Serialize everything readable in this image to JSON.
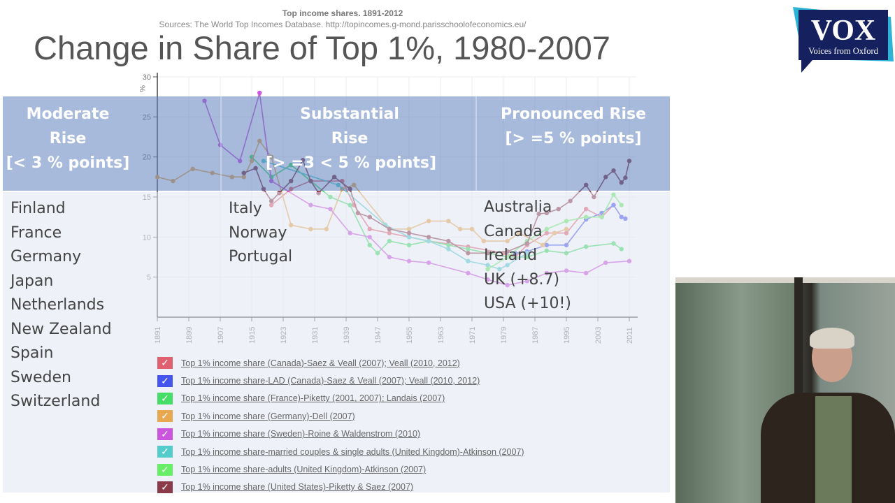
{
  "source_header": {
    "title": "Top income shares. 1891-2012",
    "sources": "Sources: The World Top Incomes Database. http://topincomes.g-mond.parisschoolofeconomics.eu/"
  },
  "slide": {
    "title": "Change in Share of Top 1%, 1980-2007",
    "columns": [
      {
        "heading_1": "Moderate",
        "heading_2": "Rise",
        "heading_3": "[< 3 % points]",
        "countries": [
          "Finland",
          "France",
          "Germany",
          "Japan",
          "Netherlands",
          "New Zealand",
          "Spain",
          "Sweden",
          "Switzerland"
        ]
      },
      {
        "heading_1": "Substantial",
        "heading_2": "Rise",
        "heading_3": "[> =3 < 5 % points]",
        "countries": [
          "Italy",
          "Norway",
          "Portugal"
        ]
      },
      {
        "heading_1": "Pronounced Rise",
        "heading_2": "[> =5 % points]",
        "heading_3": "",
        "countries": [
          "Australia",
          "Canada",
          "Ireland",
          "UK (+8.7)",
          "USA (+10!)"
        ]
      }
    ]
  },
  "logo": {
    "text": "VOX",
    "tagline": "Voices from Oxford",
    "colors": {
      "navy": "#15205e",
      "cyan": "#2cb3d6"
    }
  },
  "chart_data": {
    "type": "line",
    "title": "Top income shares. 1891-2012",
    "ylabel": "%",
    "xlim": [
      1891,
      2011
    ],
    "ylim": [
      0,
      30
    ],
    "x_ticks": [
      "1891",
      "1899",
      "1907",
      "1915",
      "1923",
      "1931",
      "1939",
      "1947",
      "1955",
      "1963",
      "1971",
      "1979",
      "1987",
      "1995",
      "2003",
      "2011"
    ],
    "y_ticks": [
      "5",
      "10",
      "15",
      "20",
      "25",
      "30"
    ],
    "grid": true,
    "legend_placement": "bottom",
    "series": [
      {
        "name": "Top 1% income share (Canada)-Saez & Veall (2007); Veall (2010, 2012)",
        "color": "#e06070",
        "points": [
          [
            1920,
            14
          ],
          [
            1925,
            16
          ],
          [
            1930,
            17
          ],
          [
            1938,
            17
          ],
          [
            1941,
            14
          ],
          [
            1945,
            11
          ],
          [
            1950,
            10.5
          ],
          [
            1955,
            10
          ],
          [
            1960,
            9.5
          ],
          [
            1970,
            8.8
          ],
          [
            1979,
            8
          ],
          [
            1982,
            7.5
          ],
          [
            1985,
            9
          ],
          [
            1990,
            10.5
          ],
          [
            1995,
            10.5
          ],
          [
            2000,
            13.5
          ],
          [
            2004,
            12.5
          ],
          [
            2007,
            14
          ]
        ]
      },
      {
        "name": "Top 1% income share-LAD (Canada)-Saez & Veall (2007); Veall (2010, 2012)",
        "color": "#4455ee",
        "points": [
          [
            1982,
            8
          ],
          [
            1985,
            8.2
          ],
          [
            1990,
            9
          ],
          [
            1995,
            9
          ],
          [
            2000,
            12.2
          ],
          [
            2004,
            13
          ],
          [
            2007,
            14
          ],
          [
            2009,
            12.5
          ],
          [
            2010,
            12.3
          ]
        ]
      },
      {
        "name": "Top 1% income share (France)-Piketty (2001, 2007); Landais (2007)",
        "color": "#44dd66",
        "points": [
          [
            1915,
            20
          ],
          [
            1920,
            17.5
          ],
          [
            1925,
            19
          ],
          [
            1930,
            17
          ],
          [
            1935,
            15
          ],
          [
            1940,
            14
          ],
          [
            1945,
            9
          ],
          [
            1947,
            8
          ],
          [
            1950,
            9.5
          ],
          [
            1955,
            9
          ],
          [
            1960,
            9.5
          ],
          [
            1965,
            9
          ],
          [
            1970,
            8.5
          ],
          [
            1980,
            7.5
          ],
          [
            1985,
            7.5
          ],
          [
            1990,
            8.3
          ],
          [
            1995,
            8
          ],
          [
            2000,
            8.8
          ],
          [
            2007,
            9.2
          ],
          [
            2009,
            8.5
          ]
        ]
      },
      {
        "name": "Top 1% income share (Germany)-Dell (2007)",
        "color": "#e8a850",
        "points": [
          [
            1891,
            17.5
          ],
          [
            1895,
            17
          ],
          [
            1900,
            18.5
          ],
          [
            1905,
            18
          ],
          [
            1910,
            17.5
          ],
          [
            1913,
            17.5
          ],
          [
            1915,
            19.5
          ],
          [
            1917,
            22
          ],
          [
            1920,
            20
          ],
          [
            1925,
            11.5
          ],
          [
            1930,
            11
          ],
          [
            1934,
            11
          ],
          [
            1938,
            16
          ],
          [
            1941,
            16.5
          ],
          [
            1950,
            11
          ],
          [
            1955,
            11
          ],
          [
            1960,
            12
          ],
          [
            1965,
            12
          ],
          [
            1968,
            11
          ],
          [
            1971,
            11
          ],
          [
            1974,
            9.5
          ],
          [
            1980,
            9.5
          ],
          [
            1983,
            10.5
          ],
          [
            1989,
            9
          ],
          [
            1992,
            10.5
          ],
          [
            1995,
            11
          ]
        ]
      },
      {
        "name": "Top 1% income share (Sweden)-Roine & Waldenstrom (2010)",
        "color": "#cc55dd",
        "points": [
          [
            1903,
            27
          ],
          [
            1907,
            21.5
          ],
          [
            1912,
            19.5
          ],
          [
            1917,
            28
          ],
          [
            1920,
            17
          ],
          [
            1930,
            14
          ],
          [
            1935,
            13.5
          ],
          [
            1940,
            10.5
          ],
          [
            1945,
            10
          ],
          [
            1950,
            7.5
          ],
          [
            1955,
            7
          ],
          [
            1960,
            6.8
          ],
          [
            1970,
            5.5
          ],
          [
            1975,
            4.7
          ],
          [
            1980,
            4
          ],
          [
            1985,
            4.5
          ],
          [
            1990,
            5.5
          ],
          [
            1995,
            5.8
          ],
          [
            2000,
            5.5
          ],
          [
            2005,
            6.8
          ],
          [
            2011,
            7
          ]
        ]
      },
      {
        "name": "Top 1% income share-married couples & single adults (United Kingdom)-Atkinson (2007)",
        "color": "#55cccc",
        "points": [
          [
            1918,
            19.5
          ],
          [
            1937,
            16.5
          ],
          [
            1949,
            11.5
          ],
          [
            1955,
            10
          ],
          [
            1960,
            9.5
          ],
          [
            1965,
            8.5
          ],
          [
            1970,
            7
          ],
          [
            1975,
            6.5
          ],
          [
            1978,
            6
          ],
          [
            1980,
            6.5
          ],
          [
            1985,
            8
          ]
        ]
      },
      {
        "name": "Top 1% income share-adults (United Kingdom)-Atkinson (2007)",
        "color": "#66ee66",
        "points": [
          [
            1975,
            6
          ],
          [
            1980,
            7.5
          ],
          [
            1985,
            9.5
          ],
          [
            1990,
            11
          ],
          [
            1995,
            12
          ],
          [
            2000,
            12.5
          ],
          [
            2004,
            12.5
          ],
          [
            2007,
            15.3
          ],
          [
            2009,
            14
          ]
        ]
      },
      {
        "name": "Top 1% income share (United States)-Piketty & Saez (2007)",
        "color": "#8b3a4a",
        "points": [
          [
            1913,
            18
          ],
          [
            1916,
            18.6
          ],
          [
            1918,
            16
          ],
          [
            1920,
            14.5
          ],
          [
            1922,
            15.5
          ],
          [
            1925,
            17
          ],
          [
            1928,
            19.6
          ],
          [
            1930,
            17
          ],
          [
            1932,
            15.5
          ],
          [
            1936,
            17.5
          ],
          [
            1940,
            16
          ],
          [
            1942,
            13
          ],
          [
            1945,
            12.5
          ],
          [
            1950,
            11
          ],
          [
            1955,
            10.5
          ],
          [
            1960,
            10
          ],
          [
            1965,
            9.5
          ],
          [
            1970,
            8
          ],
          [
            1975,
            8
          ],
          [
            1980,
            8.2
          ],
          [
            1985,
            9.2
          ],
          [
            1988,
            12.9
          ],
          [
            1990,
            13
          ],
          [
            1993,
            13.5
          ],
          [
            1996,
            14.5
          ],
          [
            2000,
            16.5
          ],
          [
            2002,
            15
          ],
          [
            2005,
            17.5
          ],
          [
            2007,
            18.3
          ],
          [
            2009,
            16.8
          ],
          [
            2010,
            17.4
          ],
          [
            2011,
            19.5
          ]
        ]
      }
    ]
  }
}
